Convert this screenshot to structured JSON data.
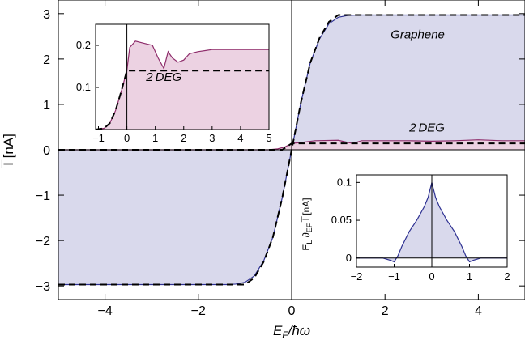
{
  "chart_data": [
    {
      "type": "area",
      "name": "main",
      "xlabel": "E_F/ħω",
      "ylabel": "I̅ [nA]",
      "xlim": [
        -5,
        5
      ],
      "ylim": [
        -3.3,
        3.3
      ],
      "xticks": [
        -4,
        -2,
        0,
        2,
        4
      ],
      "xtick_labels": [
        "−4",
        "−2",
        "0",
        "2",
        "4"
      ],
      "yticks": [
        -3,
        -2,
        -1,
        0,
        1,
        2,
        3
      ],
      "ytick_labels": [
        "−3",
        "−2",
        "−1",
        "0",
        "1",
        "2",
        "3"
      ],
      "annotations": [
        "Graphene",
        "2 DEG"
      ],
      "series": [
        {
          "name": "Graphene",
          "style": "solid blue, filled",
          "color": "#2e3192",
          "fill": "#d9d9ec",
          "x": [
            -5,
            -1.4,
            -1.2,
            -1.0,
            -0.8,
            -0.6,
            -0.4,
            -0.2,
            0,
            0.2,
            0.4,
            0.6,
            0.8,
            1.0,
            1.2,
            1.4,
            5
          ],
          "y": [
            -2.97,
            -2.97,
            -2.96,
            -2.92,
            -2.78,
            -2.45,
            -1.92,
            -1.05,
            0,
            1.05,
            1.92,
            2.45,
            2.78,
            2.92,
            2.96,
            2.97,
            2.97
          ]
        },
        {
          "name": "2 DEG",
          "style": "solid purple, filled",
          "color": "#8e2d6b",
          "fill": "#ecd2e2",
          "x": [
            -5,
            -0.5,
            -0.3,
            -0.15,
            0,
            0.2,
            0.5,
            1.0,
            1.3,
            1.5,
            2.0,
            2.5,
            3.0,
            3.5,
            4.0,
            4.5,
            5
          ],
          "y": [
            0,
            0,
            0.02,
            0.06,
            0.14,
            0.16,
            0.2,
            0.21,
            0.14,
            0.2,
            0.2,
            0.2,
            0.19,
            0.2,
            0.22,
            0.2,
            0.2
          ]
        },
        {
          "name": "graphene-reference",
          "style": "dashed black",
          "x": [
            -5,
            -1.0,
            -0.8,
            -0.6,
            -0.4,
            -0.2,
            0,
            0.2,
            0.4,
            0.6,
            0.8,
            1.0,
            5
          ],
          "y": [
            -2.97,
            -2.97,
            -2.82,
            -2.47,
            -1.92,
            -1.05,
            0,
            1.05,
            1.92,
            2.47,
            2.82,
            2.97,
            2.97
          ]
        },
        {
          "name": "2deg-reference",
          "style": "dashed black",
          "x": [
            -5,
            -0.2,
            0,
            5
          ],
          "y": [
            0,
            0,
            0.14,
            0.14
          ]
        }
      ]
    },
    {
      "type": "area",
      "name": "inset-2deg",
      "annotation": "2 DEG",
      "xlim": [
        -1.1,
        5
      ],
      "ylim": [
        0,
        0.25
      ],
      "xticks": [
        -1,
        0,
        1,
        2,
        3,
        4,
        5
      ],
      "xtick_labels": [
        "−1",
        "0",
        "1",
        "2",
        "3",
        "4",
        "5"
      ],
      "yticks": [
        0.1,
        0.2
      ],
      "ytick_labels": [
        "0.1",
        "0.2"
      ],
      "series": [
        {
          "name": "2 DEG",
          "style": "solid purple, filled",
          "color": "#8e2d6b",
          "fill": "#ecd2e2",
          "x": [
            -1.1,
            -0.8,
            -0.6,
            -0.4,
            -0.2,
            0,
            0.1,
            0.3,
            0.6,
            0.9,
            1.1,
            1.3,
            1.45,
            1.6,
            1.8,
            2.0,
            2.2,
            2.5,
            3.0,
            3.5,
            4.0,
            4.5,
            5.0
          ],
          "y": [
            0,
            0.003,
            0.015,
            0.045,
            0.09,
            0.14,
            0.195,
            0.21,
            0.205,
            0.2,
            0.17,
            0.145,
            0.185,
            0.17,
            0.16,
            0.165,
            0.18,
            0.185,
            0.19,
            0.19,
            0.19,
            0.19,
            0.19
          ]
        },
        {
          "name": "reference",
          "style": "dashed black",
          "x": [
            -1.1,
            -0.8,
            -0.6,
            -0.4,
            -0.2,
            0,
            5
          ],
          "y": [
            0,
            0.003,
            0.015,
            0.045,
            0.09,
            0.14,
            0.14
          ]
        }
      ]
    },
    {
      "type": "area",
      "name": "inset-derivative",
      "ylabel": "E_L ∂_{E_F} I̅ [nA]",
      "xlim": [
        -2,
        2
      ],
      "ylim": [
        -0.012,
        0.11
      ],
      "xticks": [
        -2,
        -1,
        0,
        1,
        2
      ],
      "xtick_labels": [
        "−2",
        "−1",
        "0",
        "1",
        "2"
      ],
      "yticks": [
        0,
        0.05,
        0.1
      ],
      "ytick_labels": [
        "0",
        "0.05",
        "0.1"
      ],
      "series": [
        {
          "name": "derivative",
          "style": "solid blue, filled",
          "color": "#2e3192",
          "fill": "#d9d9ec",
          "x": [
            -2,
            -1.6,
            -1.3,
            -1.1,
            -1.0,
            -0.9,
            -0.8,
            -0.6,
            -0.4,
            -0.2,
            -0.1,
            0,
            0.1,
            0.2,
            0.4,
            0.6,
            0.8,
            0.9,
            1.0,
            1.1,
            1.3,
            1.6,
            2
          ],
          "y": [
            0,
            0,
            0,
            -0.003,
            -0.005,
            0.003,
            0.015,
            0.035,
            0.05,
            0.068,
            0.08,
            0.1,
            0.08,
            0.068,
            0.05,
            0.035,
            0.015,
            0.003,
            -0.005,
            -0.003,
            0,
            0,
            0
          ]
        }
      ]
    }
  ]
}
